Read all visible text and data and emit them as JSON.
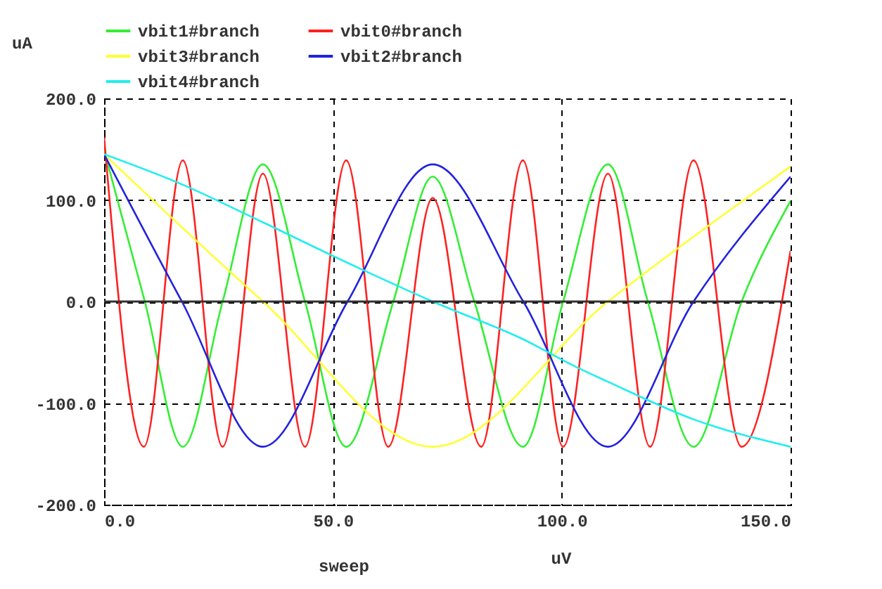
{
  "chart_data": {
    "type": "line",
    "xlabel": "sweep",
    "ylabel": "uA",
    "annotations": [
      "uV"
    ],
    "xlim": [
      0,
      150
    ],
    "xticks": [
      {
        "value": 0,
        "label": "0.0"
      },
      {
        "value": 50,
        "label": "50.0"
      },
      {
        "value": 100,
        "label": "100.0"
      },
      {
        "value": 150,
        "label": "150.0"
      }
    ],
    "ylim": [
      -200,
      200
    ],
    "yticks": [
      {
        "value": -200,
        "label": "-200.0"
      },
      {
        "value": -100,
        "label": "-100.0"
      },
      {
        "value": 0,
        "label": "0.0"
      },
      {
        "value": 100,
        "label": "100.0"
      },
      {
        "value": 200,
        "label": "200.0"
      }
    ],
    "grid": true,
    "legend": "top",
    "ref_lines": [
      {
        "axis": "y",
        "value": 0,
        "color": "#333333",
        "line_style": "solid"
      }
    ],
    "series": [
      {
        "name": "vbit1#branch",
        "color": "#33ee33",
        "x": [
          0,
          8.9,
          17.2,
          25.9,
          34.7,
          43.9,
          52.9,
          63.2,
          71.8,
          80.9,
          91.5,
          100.3,
          110.1,
          118.8,
          128.8,
          139.3,
          150
        ],
        "values": [
          149,
          0,
          -143,
          0,
          135,
          0,
          -143,
          0,
          123,
          0,
          -143,
          0,
          135,
          0,
          -143,
          0,
          99
        ]
      },
      {
        "name": "vbit0#branch",
        "color": "#ff2020",
        "x": [
          0,
          8.7,
          17.2,
          25.9,
          34.7,
          43.9,
          52.9,
          62.1,
          71.8,
          82.4,
          91.5,
          100.3,
          110.1,
          119.3,
          128.8,
          139.3,
          150
        ],
        "values": [
          162,
          -143,
          139,
          -143,
          126,
          -143,
          139,
          -143,
          102,
          -143,
          139,
          -143,
          126,
          -143,
          139,
          -143,
          50
        ]
      },
      {
        "name": "vbit3#branch",
        "color": "#ffff33",
        "x": [
          0,
          34.7,
          71.8,
          110.1,
          150
        ],
        "values": [
          145,
          0,
          -143,
          0,
          133
        ]
      },
      {
        "name": "vbit2#branch",
        "color": "#2222dd",
        "x": [
          0,
          17,
          34.7,
          53.2,
          71.8,
          91.6,
          110.1,
          128.8,
          150
        ],
        "values": [
          145,
          0,
          -143,
          0,
          135,
          0,
          -143,
          0,
          123
        ]
      },
      {
        "name": "vbit4#branch",
        "color": "#22eeee",
        "x": [
          0,
          17.2,
          34.7,
          54.2,
          71.8,
          91.5,
          103.4,
          110.1,
          128.8,
          150
        ],
        "values": [
          145,
          115,
          78,
          36,
          0,
          -37,
          -65,
          -79,
          -116,
          -143
        ]
      }
    ]
  }
}
